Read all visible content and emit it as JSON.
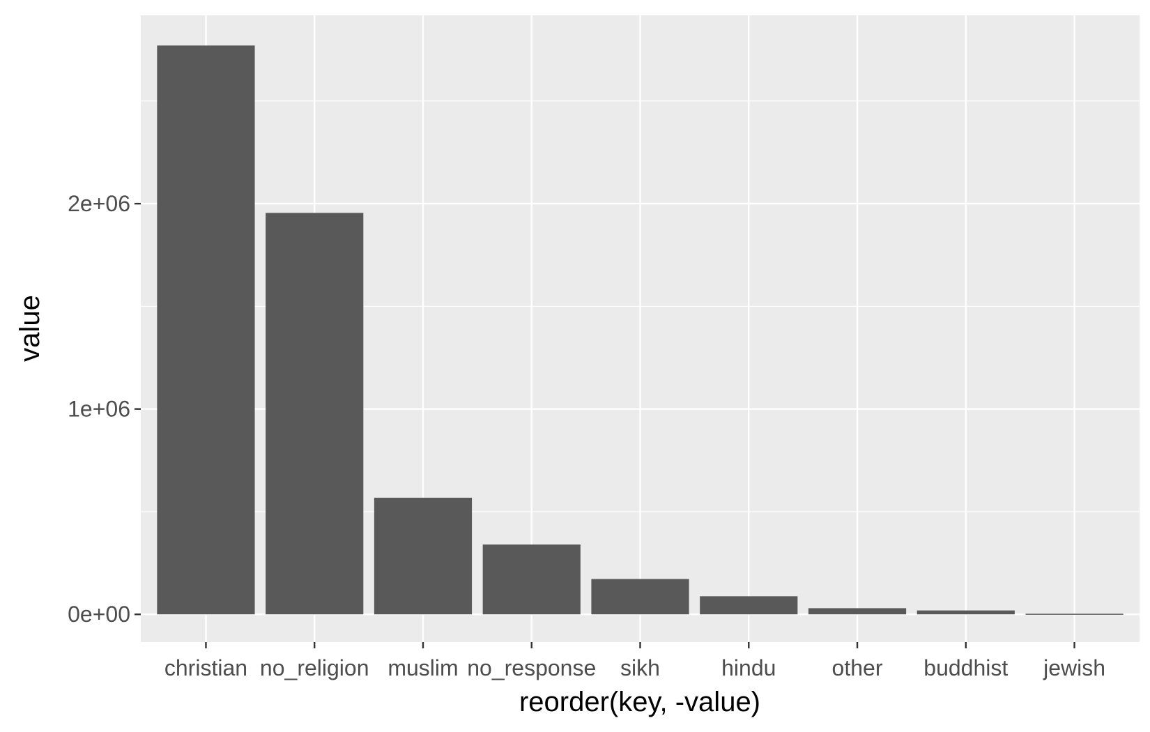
{
  "chart_data": {
    "type": "bar",
    "title": "",
    "xlabel": "reorder(key, -value)",
    "ylabel": "value",
    "categories": [
      "christian",
      "no_religion",
      "muslim",
      "no_response",
      "sikh",
      "hindu",
      "other",
      "buddhist",
      "jewish"
    ],
    "values": [
      2770000,
      1955000,
      568000,
      340000,
      172000,
      88000,
      30000,
      19000,
      3000
    ],
    "ylim": [
      -135000,
      2917000
    ],
    "yticks": [
      0,
      1000000,
      2000000
    ],
    "ytick_labels": [
      "0e+00",
      "1e+06",
      "2e+06"
    ],
    "grid": true,
    "legend": "none",
    "colors": {
      "bar": "#595959",
      "panel": "#ebebeb",
      "grid": "#ffffff",
      "tick": "#333333"
    }
  }
}
